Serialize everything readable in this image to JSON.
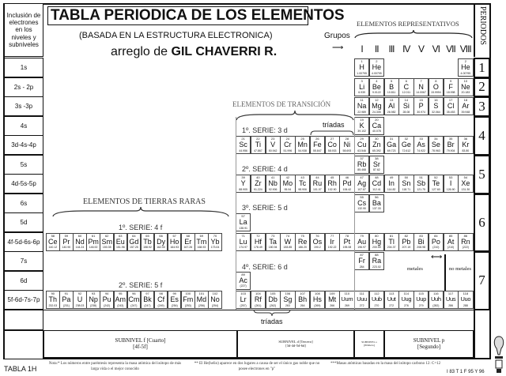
{
  "title": "TABLA PERIODICA DE LOS ELEMENTOS",
  "subtitle": "(BASADA EN LA ESTRUCTURA ELECTRONICA)",
  "author_prefix": "arreglo de",
  "author": "GIL CHAVERRI R.",
  "left_header": "Inclusión de electrones en los niveles y subniveles",
  "periods_header": "PERIODOS",
  "groups_label": "Grupos",
  "representativos": "ELEMENTOS REPRESENTATIVOS",
  "groups": [
    "I",
    "II",
    "III",
    "IV",
    "V",
    "VI",
    "VII",
    "VIII"
  ],
  "transicion": "ELEMENTOS DE TRANSICIÓN",
  "tierras_raras": "ELEMENTOS DE TIERRAS RARAS",
  "triadas": "tríadas",
  "series": {
    "s3d": "1º. SERIE: 3 d",
    "s4d": "2º. SERIE: 4 d",
    "s5d": "3º. SERIE: 5 d",
    "s6d": "4º. SERIE: 6 d",
    "s4f": "1º. SERIE: 4 f",
    "s5f": "2º. SERIE: 5 f"
  },
  "metales": "metales",
  "no_metales": "no metales",
  "periods": [
    "1",
    "2",
    "3",
    "4",
    "5",
    "6",
    "7"
  ],
  "rows": [
    {
      "label": "1s",
      "s": [
        [
          "1",
          "H",
          "1.00795"
        ],
        [
          "2",
          "He",
          "4.00795"
        ]
      ],
      "p": [
        [
          "2",
          "He",
          "4.00795"
        ]
      ]
    },
    {
      "label": "2s - 2p",
      "s": [
        [
          "3",
          "Li",
          "6.939"
        ],
        [
          "4",
          "Be",
          "9.0122"
        ]
      ],
      "p": [
        [
          "5",
          "B",
          "10.811"
        ],
        [
          "6",
          "C",
          "12.011"
        ],
        [
          "7",
          "N",
          "14.0067"
        ],
        [
          "8",
          "O",
          "15.9994"
        ],
        [
          "9",
          "F",
          "18.998"
        ],
        [
          "10",
          "Ne",
          "20.183"
        ]
      ]
    },
    {
      "label": "3s -3p",
      "s": [
        [
          "11",
          "Na",
          "22.989"
        ],
        [
          "12",
          "Mg",
          "24.305"
        ]
      ],
      "p": [
        [
          "13",
          "Al",
          "26.982"
        ],
        [
          "14",
          "Si",
          "28.08"
        ],
        [
          "15",
          "P",
          "30.974"
        ],
        [
          "16",
          "S",
          "32.064"
        ],
        [
          "17",
          "Cl",
          "35.453"
        ],
        [
          "18",
          "Ar",
          "39.948"
        ]
      ]
    },
    {
      "label": "4s",
      "s": [
        [
          "19",
          "K",
          "39.102"
        ],
        [
          "20",
          "Ca",
          "40.078"
        ]
      ]
    },
    {
      "label": "3d-4s-4p",
      "d": [
        [
          "21",
          "Sc",
          "44.956"
        ],
        [
          "22",
          "Ti",
          "47.867"
        ],
        [
          "23",
          "V",
          "50.942"
        ],
        [
          "24",
          "Cr",
          "51.996"
        ],
        [
          "25",
          "Mn",
          "54.938"
        ],
        [
          "26",
          "Fe",
          "55.847"
        ],
        [
          "27",
          "Co",
          "58.933"
        ],
        [
          "28",
          "Ni",
          "58.693"
        ]
      ],
      "s": [
        [
          "29",
          "Cu",
          "63.546"
        ],
        [
          "30",
          "Zn",
          "65.392"
        ]
      ],
      "p": [
        [
          "31",
          "Ga",
          "69.723"
        ],
        [
          "32",
          "Ge",
          "72.612"
        ],
        [
          "33",
          "As",
          "74.922"
        ],
        [
          "34",
          "Se",
          "78.963"
        ],
        [
          "35",
          "Br",
          "79.904"
        ],
        [
          "36",
          "Kr",
          "83.80"
        ]
      ]
    },
    {
      "label": "5s",
      "s": [
        [
          "37",
          "Rb",
          "85.468"
        ],
        [
          "38",
          "Sr",
          "87.62"
        ]
      ]
    },
    {
      "label": "4d-5s-5p",
      "d": [
        [
          "39",
          "Y",
          "88.905"
        ],
        [
          "40",
          "Zr",
          "91.224"
        ],
        [
          "41",
          "Nb",
          "92.906"
        ],
        [
          "42",
          "Mo",
          "95.94"
        ],
        [
          "43",
          "Tc",
          "98.906"
        ],
        [
          "44",
          "Ru",
          "101.07"
        ],
        [
          "45",
          "Rh",
          "102.90"
        ],
        [
          "46",
          "Pd",
          "106.42"
        ]
      ],
      "s": [
        [
          "47",
          "Ag",
          "107.87"
        ],
        [
          "48",
          "Cd",
          "112.41"
        ]
      ],
      "p": [
        [
          "49",
          "In",
          "114.82"
        ],
        [
          "50",
          "Sn",
          "118.71"
        ],
        [
          "51",
          "Sb",
          "121.75"
        ],
        [
          "52",
          "Te",
          "127.60"
        ],
        [
          "53",
          "I",
          "126.90"
        ],
        [
          "54",
          "Xe",
          "131.30"
        ]
      ]
    },
    {
      "label": "6s",
      "s": [
        [
          "55",
          "Cs",
          "132.90"
        ],
        [
          "56",
          "Ba",
          "137.33"
        ]
      ]
    },
    {
      "label": "5d",
      "d": [
        [
          "57",
          "La",
          "138.91"
        ]
      ]
    },
    {
      "label": "4f-5d-6s-6p",
      "f": [
        [
          "58",
          "Ce",
          "140.12"
        ],
        [
          "59",
          "Pr",
          "140.90"
        ],
        [
          "60",
          "Nd",
          "144.24"
        ],
        [
          "61",
          "Pm",
          "146.92"
        ],
        [
          "62",
          "Sm",
          "150.35"
        ],
        [
          "63",
          "Eu",
          "151.96"
        ],
        [
          "64",
          "Gd",
          "157.25"
        ],
        [
          "65",
          "Tb",
          "158.92"
        ],
        [
          "66",
          "Dy",
          "162.50"
        ],
        [
          "67",
          "Ho",
          "164.93"
        ],
        [
          "68",
          "Er",
          "167.26"
        ],
        [
          "69",
          "Tm",
          "168.93"
        ],
        [
          "70",
          "Yb",
          "173.04"
        ]
      ],
      "d": [
        [
          "71",
          "Lu",
          "174.97"
        ],
        [
          "72",
          "Hf",
          "178.49"
        ],
        [
          "73",
          "Ta",
          "180.94"
        ],
        [
          "74",
          "W",
          "183.85"
        ],
        [
          "75",
          "Re",
          "186.20"
        ],
        [
          "76",
          "Os",
          "190.2"
        ],
        [
          "77",
          "Ir",
          "192.22"
        ],
        [
          "78",
          "Pt",
          "195.08"
        ]
      ],
      "s": [
        [
          "79",
          "Au",
          "196.97"
        ],
        [
          "80",
          "Hg",
          "200.59"
        ]
      ],
      "p": [
        [
          "81",
          "Tl",
          "204.37"
        ],
        [
          "82",
          "Pb",
          "207.19"
        ],
        [
          "83",
          "Bi",
          "208.98"
        ],
        [
          "84",
          "Po",
          "(210)"
        ],
        [
          "85",
          "At",
          "(210)"
        ],
        [
          "86",
          "Rn",
          "(222)"
        ]
      ]
    },
    {
      "label": "7s",
      "s": [
        [
          "87",
          "Fr",
          "284"
        ],
        [
          "88",
          "Ra",
          "223.02"
        ]
      ]
    },
    {
      "label": "6d",
      "d": [
        [
          "89",
          "Ac",
          "(227)"
        ]
      ]
    },
    {
      "label": "5f-6d-7s-7p",
      "f": [
        [
          "90",
          "Th",
          "232.03"
        ],
        [
          "91",
          "Pa",
          "(231)"
        ],
        [
          "92",
          "U",
          "238.03"
        ],
        [
          "93",
          "Np",
          "(238)"
        ],
        [
          "94",
          "Pu",
          "(242)"
        ],
        [
          "95",
          "Am",
          "(243)"
        ],
        [
          "96",
          "Cm",
          "(247)"
        ],
        [
          "97",
          "Bk",
          "(247)"
        ],
        [
          "98",
          "Cf",
          "(249)"
        ],
        [
          "99",
          "Es",
          "(254)"
        ],
        [
          "100",
          "Fm",
          "(253)"
        ],
        [
          "101",
          "Md",
          "(256)"
        ],
        [
          "102",
          "No",
          "(254)"
        ]
      ],
      "d": [
        [
          "103",
          "Lr",
          "(257)"
        ],
        [
          "104",
          "Rf",
          "(261)"
        ],
        [
          "105",
          "Db",
          "(262)"
        ],
        [
          "106",
          "Sg",
          "263"
        ],
        [
          "107",
          "Bh",
          "264"
        ],
        [
          "108",
          "Hs",
          "(269)"
        ],
        [
          "109",
          "Mt",
          "266"
        ],
        [
          "110",
          "Uum",
          "269"
        ]
      ],
      "s": [
        [
          "111",
          "Uuu",
          "272"
        ],
        [
          "112",
          "Uub",
          "270"
        ]
      ],
      "p": [
        [
          "113",
          "Uut",
          "272"
        ],
        [
          "114",
          "Uug",
          "276"
        ],
        [
          "115",
          "Uup",
          "279"
        ],
        [
          "116",
          "Uuh",
          "(282)"
        ],
        [
          "117",
          "Uus",
          "286"
        ],
        [
          "118",
          "Uuo",
          "288"
        ]
      ]
    }
  ],
  "subniveles": {
    "f": {
      "name": "SUBNIVEL f [Cuarto]",
      "sub": "[4f-5f]"
    },
    "d": {
      "name": "SUBNIVEL d [Tercero]",
      "sub": "[3d-4d-5d-6d]"
    },
    "s": {
      "name": "SUBNIVEL s",
      "sub": "[Primero]"
    },
    "p": {
      "name": "SUBNIVEL p",
      "sub": "[Segundo]"
    }
  },
  "notes": [
    "Nota:* Los números entre paréntesis representa la masa atómica del isótopo de más larga vida o el mejor conocido",
    "** El He(helio) aparece en dos lugares a causa de ser el único gas noble que no posee electrones en \"p\"",
    "***Masas atómicas basadas en la masa del isótopo carbono 12: C=12"
  ],
  "table_id": "TABLA 1H",
  "code": "I 83 T 1 F 95 Y 96"
}
